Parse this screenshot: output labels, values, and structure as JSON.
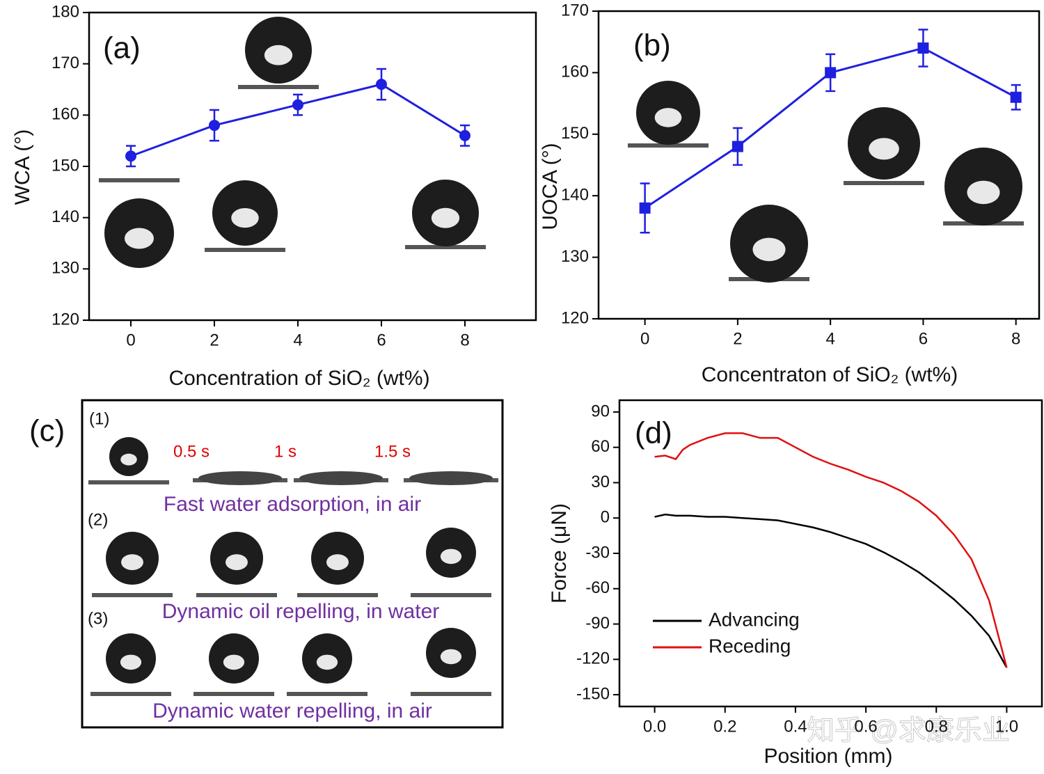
{
  "chart_data": [
    {
      "type": "line",
      "panel_label": "(a)",
      "x": [
        0,
        2,
        4,
        6,
        8
      ],
      "values": [
        152,
        158,
        162,
        166,
        156
      ],
      "errors": [
        2,
        3,
        2,
        3,
        2
      ],
      "color": "#1f1fe0",
      "marker": "circle",
      "xlim": [
        -1,
        9.7
      ],
      "xticks": [
        0,
        2,
        4,
        6,
        8
      ],
      "ylim": [
        120,
        180
      ],
      "yticks": [
        120,
        130,
        140,
        150,
        160,
        170,
        180
      ],
      "ylabel": "WCA (°)",
      "xlabel": "Concentration of SiO₂ (wt%)"
    },
    {
      "type": "line",
      "panel_label": "(b)",
      "x": [
        0,
        2,
        4,
        6,
        8
      ],
      "values": [
        138,
        148,
        160,
        164,
        156
      ],
      "errors": [
        4,
        3,
        3,
        3,
        2
      ],
      "color": "#1f1fe0",
      "marker": "square",
      "xlim": [
        -1,
        8.5
      ],
      "xticks": [
        0,
        2,
        4,
        6,
        8
      ],
      "ylim": [
        120,
        170
      ],
      "yticks": [
        120,
        130,
        140,
        150,
        160,
        170
      ],
      "ylabel": "UOCA (°)",
      "xlabel": "Concentraton of SiO₂ (wt%)"
    },
    {
      "type": "line",
      "panel_label": "(d)",
      "x": [
        0,
        0.03,
        0.06,
        0.08,
        0.1,
        0.15,
        0.2,
        0.25,
        0.3,
        0.35,
        0.4,
        0.45,
        0.5,
        0.55,
        0.6,
        0.65,
        0.7,
        0.75,
        0.8,
        0.85,
        0.9,
        0.95,
        1.0
      ],
      "series": [
        {
          "name": "Advancing",
          "color": "#000000",
          "values": [
            1,
            3,
            2,
            2,
            2,
            1,
            1,
            0,
            -1,
            -2,
            -5,
            -8,
            -12,
            -17,
            -22,
            -29,
            -37,
            -46,
            -57,
            -69,
            -83,
            -100,
            -127
          ]
        },
        {
          "name": "Receding",
          "color": "#e01010",
          "values": [
            52,
            53,
            50,
            58,
            62,
            68,
            72,
            72,
            68,
            68,
            60,
            52,
            46,
            41,
            35,
            30,
            23,
            14,
            2,
            -14,
            -35,
            -70,
            -127
          ]
        }
      ],
      "xlim": [
        -0.1,
        1.1
      ],
      "xticks": [
        {
          "value": 0,
          "label": "0.0"
        },
        0.2,
        0.4,
        0.6,
        0.8,
        {
          "value": 1,
          "label": "1.0"
        }
      ],
      "ylim": [
        -160,
        100
      ],
      "yticks": [
        -150,
        -120,
        -90,
        -60,
        -30,
        0,
        30,
        60,
        90
      ],
      "ylabel": "Force (μN)",
      "xlabel": "Position (mm)",
      "legend": "lower left"
    }
  ],
  "panel_c": {
    "label": "(c)",
    "rows": [
      {
        "label": "(1)",
        "times": [
          "0.5 s",
          "1 s",
          "1.5 s"
        ],
        "caption": "Fast water adsorption, in air"
      },
      {
        "label": "(2)",
        "caption": "Dynamic oil repelling, in water"
      },
      {
        "label": "(3)",
        "caption": "Dynamic water repelling, in air"
      }
    ]
  },
  "watermark": "知乎 @求康乐业"
}
